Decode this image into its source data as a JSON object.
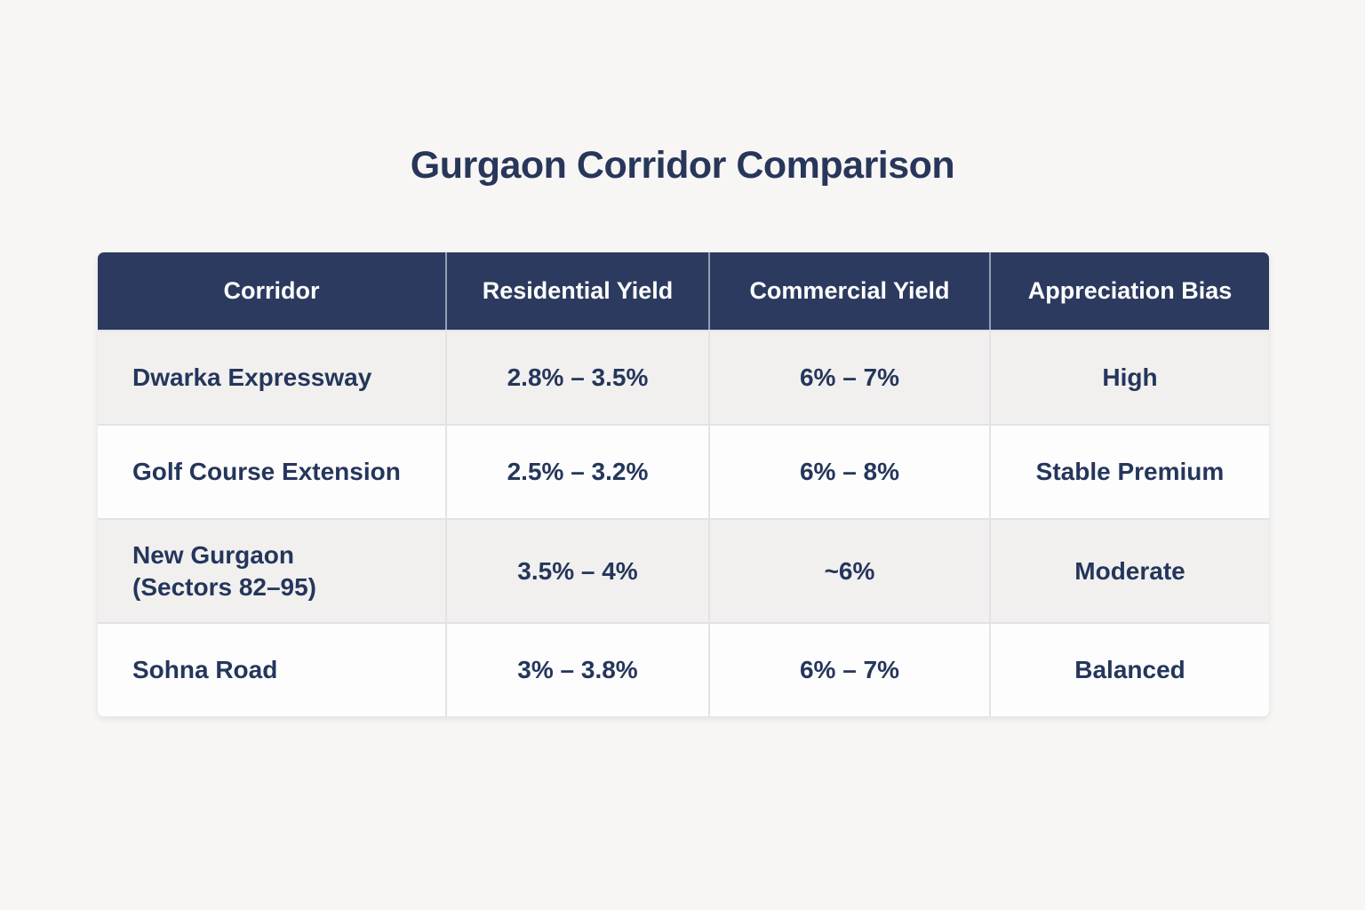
{
  "title": "Gurgaon Corridor Comparison",
  "colors": {
    "page_background": "#f7f6f4",
    "header_background": "#2b3a5e",
    "header_text": "#ffffff",
    "row_alt_background": "#f1f0ee",
    "row_background": "#fdfdfd",
    "cell_text": "#25365c",
    "title_text": "#28365a",
    "divider": "#e3e3e7"
  },
  "table": {
    "headers": [
      "Corridor",
      "Residential Yield",
      "Commercial Yield",
      "Appreciation Bias"
    ],
    "rows": [
      {
        "corridor": "Dwarka Expressway",
        "residential_yield": "2.8% – 3.5%",
        "commercial_yield": "6% – 7%",
        "appreciation_bias": "High"
      },
      {
        "corridor": "Golf Course Extension",
        "residential_yield": "2.5% – 3.2%",
        "commercial_yield": "6% – 8%",
        "appreciation_bias": "Stable Premium"
      },
      {
        "corridor": "New Gurgaon\n(Sectors 82–95)",
        "residential_yield": "3.5% – 4%",
        "commercial_yield": "~6%",
        "appreciation_bias": "Moderate"
      },
      {
        "corridor": "Sohna Road",
        "residential_yield": "3% – 3.8%",
        "commercial_yield": "6% – 7%",
        "appreciation_bias": "Balanced"
      }
    ]
  },
  "chart_data": {
    "type": "table",
    "title": "Gurgaon Corridor Comparison",
    "columns": [
      "Corridor",
      "Residential Yield",
      "Commercial Yield",
      "Appreciation Bias"
    ],
    "rows": [
      [
        "Dwarka Expressway",
        "2.8% – 3.5%",
        "6% – 7%",
        "High"
      ],
      [
        "Golf Course Extension",
        "2.5% – 3.2%",
        "6% – 8%",
        "Stable Premium"
      ],
      [
        "New Gurgaon (Sectors 82–95)",
        "3.5% – 4%",
        "~6%",
        "Moderate"
      ],
      [
        "Sohna Road",
        "3% – 3.8%",
        "6% – 7%",
        "Balanced"
      ]
    ]
  }
}
